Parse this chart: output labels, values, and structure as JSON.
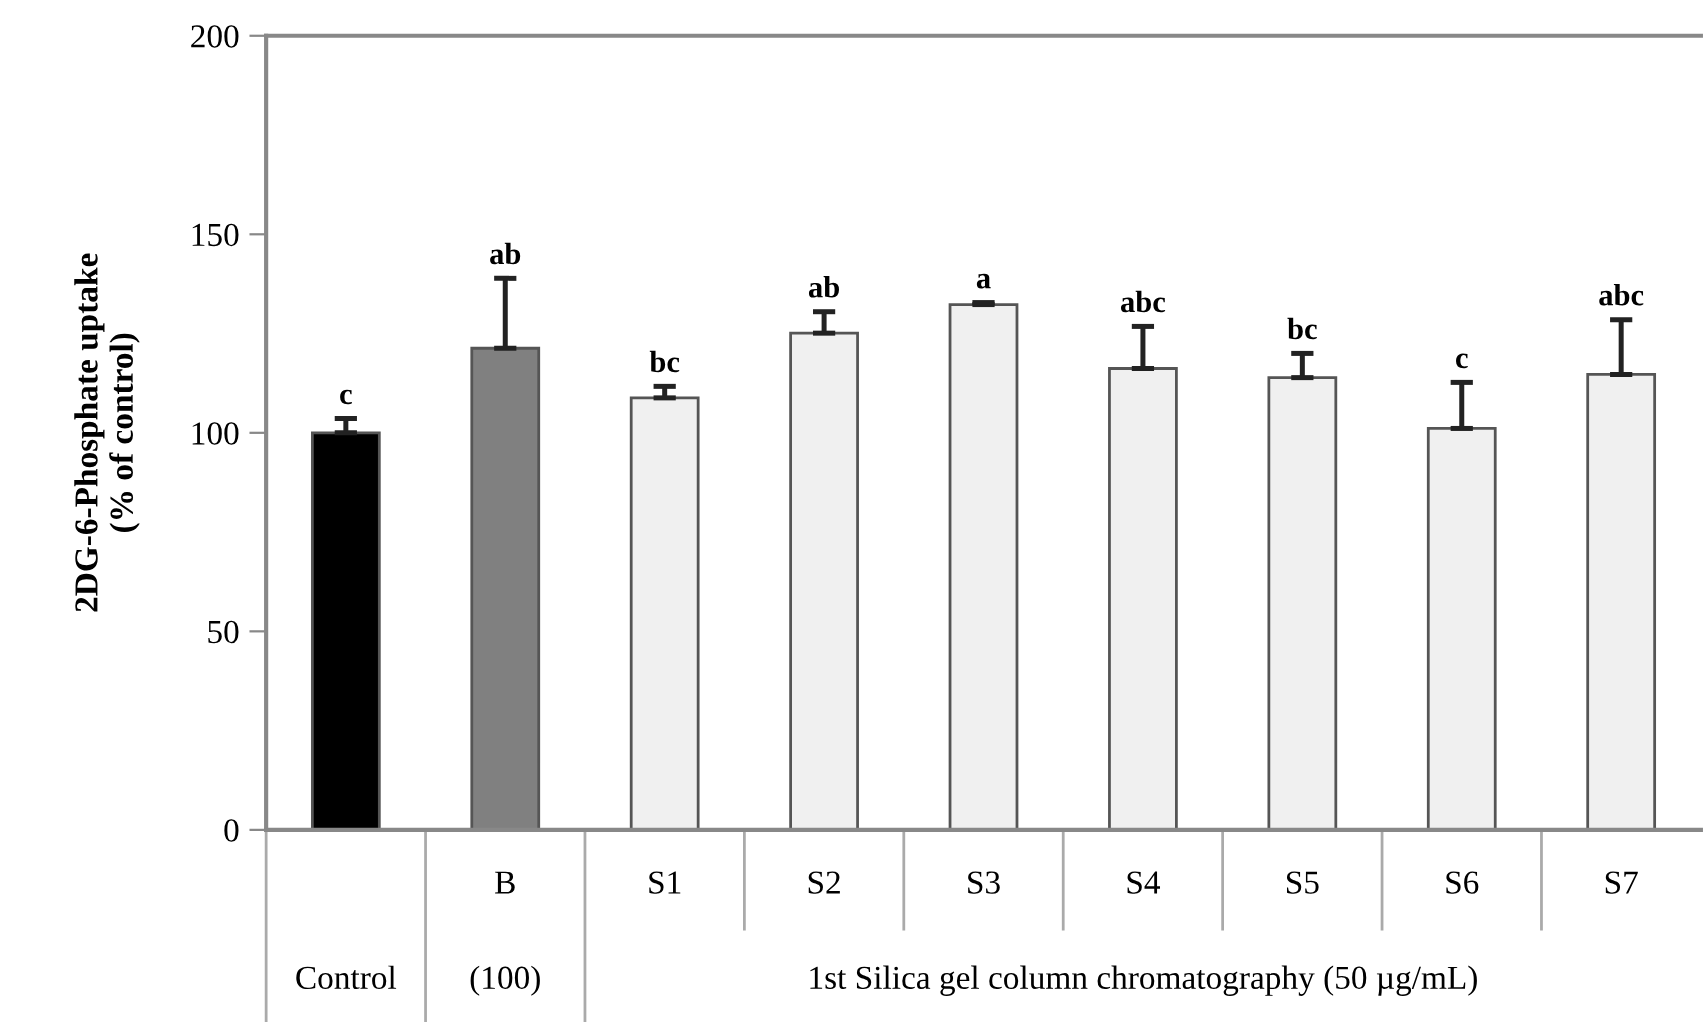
{
  "chart_data": {
    "type": "bar",
    "ylabel": "2DG-6-Phosphate uptake\n(% of control)",
    "categories": [
      null,
      "B",
      "S1",
      "S2",
      "S3",
      "S4",
      "S5",
      "S6",
      "S7"
    ],
    "values": [
      100,
      121.3,
      108.8,
      125.1,
      132.3,
      116.2,
      113.9,
      101.1,
      114.7
    ],
    "colors": [
      "#000000",
      "#808080",
      "#f0f0f0",
      "#f0f0f0",
      "#f0f0f0",
      "#f0f0f0",
      "#f0f0f0",
      "#f0f0f0",
      "#f0f0f0"
    ],
    "errors": [
      [
        100,
        103.6
      ],
      [
        121.3,
        138.9
      ],
      [
        108.8,
        111.7
      ],
      [
        125.1,
        130.5
      ],
      [
        132.3,
        132.8
      ],
      [
        116.2,
        126.8
      ],
      [
        113.9,
        120.0
      ],
      [
        101.1,
        112.7
      ],
      [
        114.7,
        128.5
      ]
    ],
    "value_labels": [
      "c",
      "ab",
      "bc",
      "ab",
      "a",
      "abc",
      "bc",
      "c",
      "abc"
    ],
    "annotations": [
      "Control",
      "(100)",
      "1st Silica gel column chromatography (50 µg/mL)"
    ],
    "ylim": [
      0,
      200
    ],
    "yticks": [
      0,
      50,
      100,
      150,
      200
    ],
    "grid": false,
    "legend": false
  }
}
